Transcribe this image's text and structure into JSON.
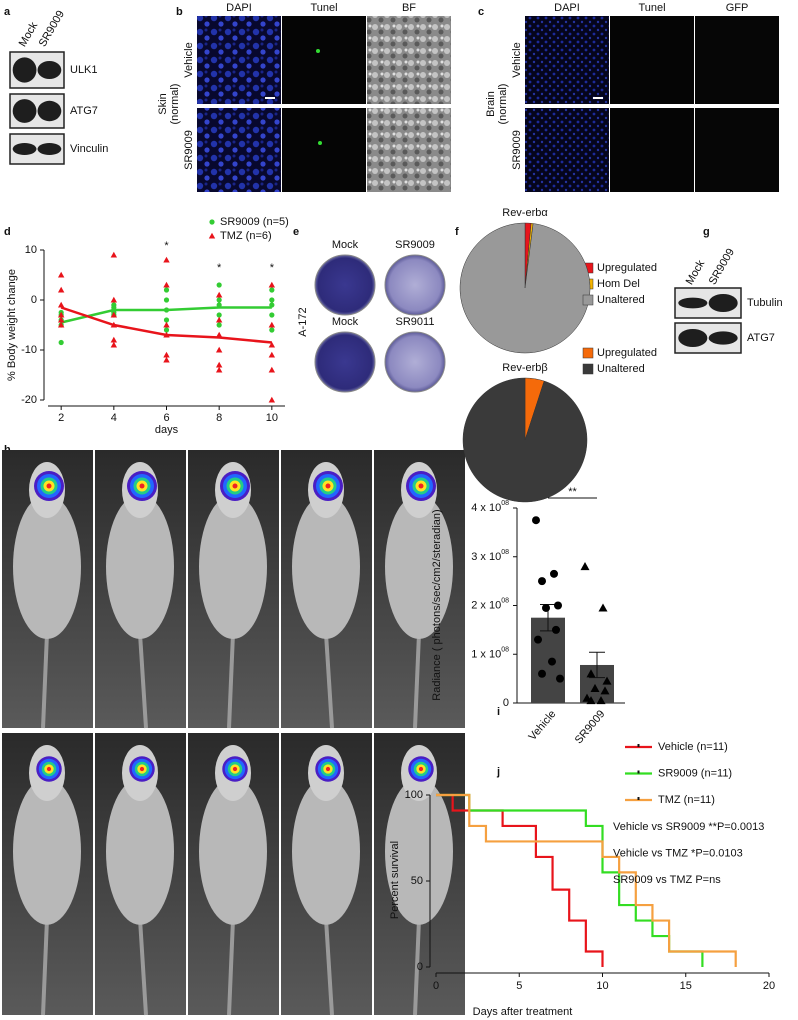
{
  "panel_labels": [
    "a",
    "b",
    "c",
    "d",
    "e",
    "f",
    "g",
    "h",
    "i",
    "j"
  ],
  "blot_a": {
    "lanes": [
      "Mock",
      "SR9009"
    ],
    "bands": [
      "ULK1",
      "ATG7",
      "Vinculin"
    ]
  },
  "microscopy_b": {
    "side_label": [
      "Skin",
      "(normal)"
    ],
    "columns": [
      "DAPI",
      "Tunel",
      "BF"
    ],
    "rows": [
      "Vehicle",
      "SR9009"
    ]
  },
  "microscopy_c": {
    "side_label": [
      "Brain",
      "(normal)"
    ],
    "columns": [
      "DAPI",
      "Tunel",
      "GFP"
    ],
    "rows": [
      "Vehicle",
      "SR9009"
    ]
  },
  "colony_e": {
    "cell_line": "A-172",
    "labels": [
      "Mock",
      "SR9009",
      "Mock",
      "SR9011"
    ]
  },
  "blot_g": {
    "lanes": [
      "Mock",
      "SR9009"
    ],
    "bands": [
      "Tubulin",
      "ATG7"
    ]
  },
  "chart_data": [
    {
      "type": "line",
      "ylabel": "% Body weight change",
      "xlabel": "days",
      "xlim": [
        1.5,
        10.5
      ],
      "ylim": [
        -20,
        10
      ],
      "xticks": [
        2,
        4,
        6,
        8,
        10
      ],
      "yticks": [
        -20,
        -10,
        0,
        10
      ],
      "significance": {
        "x": [
          6,
          8,
          10
        ],
        "labels": [
          "*",
          "*",
          "*"
        ]
      },
      "series": [
        {
          "name": "SR9009 (n=5)",
          "color": "#33cc33",
          "marker": "circle",
          "x": [
            2,
            4,
            6,
            8,
            10
          ],
          "values": [
            -4.5,
            -2,
            -2,
            -1.5,
            -1.5
          ],
          "points_x": [
            2,
            2,
            2,
            2,
            2,
            4,
            4,
            4,
            4,
            4,
            6,
            6,
            6,
            6,
            6,
            8,
            8,
            8,
            8,
            8,
            10,
            10,
            10,
            10,
            10
          ],
          "points_y": [
            -8.5,
            -5,
            -4,
            -3,
            -2.5,
            -2,
            -1,
            -3,
            -1.5,
            -2.5,
            2,
            0,
            -2,
            -4,
            -6,
            3,
            0,
            -1,
            -3,
            -5,
            2,
            0,
            -1,
            -3,
            -6
          ]
        },
        {
          "name": "TMZ (n=6)",
          "color": "#e8141b",
          "marker": "triangle",
          "x": [
            2,
            4,
            6,
            8,
            10
          ],
          "values": [
            -1.5,
            -5,
            -7,
            -7.5,
            -8.5
          ],
          "points_x": [
            2,
            2,
            2,
            2,
            2,
            2,
            4,
            4,
            4,
            4,
            4,
            4,
            6,
            6,
            6,
            6,
            6,
            6,
            8,
            8,
            8,
            8,
            8,
            8,
            10,
            10,
            10,
            10,
            10,
            10
          ],
          "points_y": [
            5,
            2,
            -1,
            -3,
            -4,
            -5,
            9,
            0,
            -3,
            -5,
            -8,
            -9,
            8,
            3,
            -5,
            -7,
            -11,
            -12,
            1,
            -4,
            -7,
            -10,
            -13,
            -14,
            3,
            -5,
            -9,
            -11,
            -14,
            -20
          ]
        }
      ]
    },
    {
      "type": "pie",
      "title": "Rev-erbα",
      "categories": [
        "Upregulated",
        "Hom Del",
        "Unaltered"
      ],
      "values": [
        1.5,
        0.5,
        98
      ],
      "colors": [
        "#e8141b",
        "#f5b400",
        "#999999"
      ]
    },
    {
      "type": "pie",
      "title": "Rev-erbβ",
      "categories": [
        "Upregulated",
        "Unaltered"
      ],
      "values": [
        5,
        95
      ],
      "colors": [
        "#f56a0a",
        "#3a3a3a"
      ]
    },
    {
      "type": "bar",
      "ylabel": "Radiance ( photons/sec/cm2/steradian)",
      "categories": [
        "Vehicle",
        "SR9009"
      ],
      "values": [
        175000000,
        78000000
      ],
      "errors": [
        27000000,
        26000000
      ],
      "color": "#444444",
      "markers": [
        "circle",
        "triangle"
      ],
      "points": [
        [
          375000000,
          265000000,
          250000000,
          200000000,
          195000000,
          150000000,
          130000000,
          85000000,
          60000000,
          50000000
        ],
        [
          280000000,
          195000000,
          60000000,
          45000000,
          30000000,
          25000000,
          10000000,
          5000000,
          5000000
        ]
      ],
      "ylim": [
        0,
        400000000
      ],
      "yticks": [
        0,
        {
          "value": 100000000,
          "label": "1 x 10",
          "exponent": "08"
        },
        {
          "value": 200000000,
          "label": "2 x 10",
          "exponent": "08"
        },
        {
          "value": 300000000,
          "label": "3 x 10",
          "exponent": "08"
        },
        {
          "value": 400000000,
          "label": "4 x 10",
          "exponent": "08"
        }
      ],
      "significance": "**"
    },
    {
      "type": "step",
      "xlabel": "Days after treatment",
      "ylabel": "Percent survival",
      "xlim": [
        0,
        20
      ],
      "ylim": [
        0,
        100
      ],
      "xticks": [
        0,
        5,
        10,
        15,
        20
      ],
      "yticks": [
        0,
        50,
        100
      ],
      "series": [
        {
          "name": "Vehicle (n=11)",
          "color": "#e8141b",
          "x": [
            0,
            1,
            4,
            6,
            7,
            8,
            9,
            10
          ],
          "values": [
            100,
            91,
            82,
            64,
            45,
            27,
            9,
            0
          ]
        },
        {
          "name": "SR9009 (n=11)",
          "color": "#33dd22",
          "x": [
            0,
            2,
            9,
            10,
            11,
            12,
            13,
            14,
            16
          ],
          "values": [
            100,
            91,
            82,
            55,
            36,
            27,
            18,
            9,
            0
          ]
        },
        {
          "name": "TMZ (n=11)",
          "color": "#f5a040",
          "x": [
            0,
            2,
            3,
            10,
            11,
            12,
            13,
            14,
            18
          ],
          "values": [
            100,
            82,
            73,
            64,
            55,
            36,
            27,
            9,
            0
          ]
        }
      ],
      "stats": [
        "Vehicle vs SR9009 **P=0.0013",
        "Vehicle vs TMZ *P=0.0103",
        "SR9009 vs TMZ P=ns"
      ]
    }
  ]
}
